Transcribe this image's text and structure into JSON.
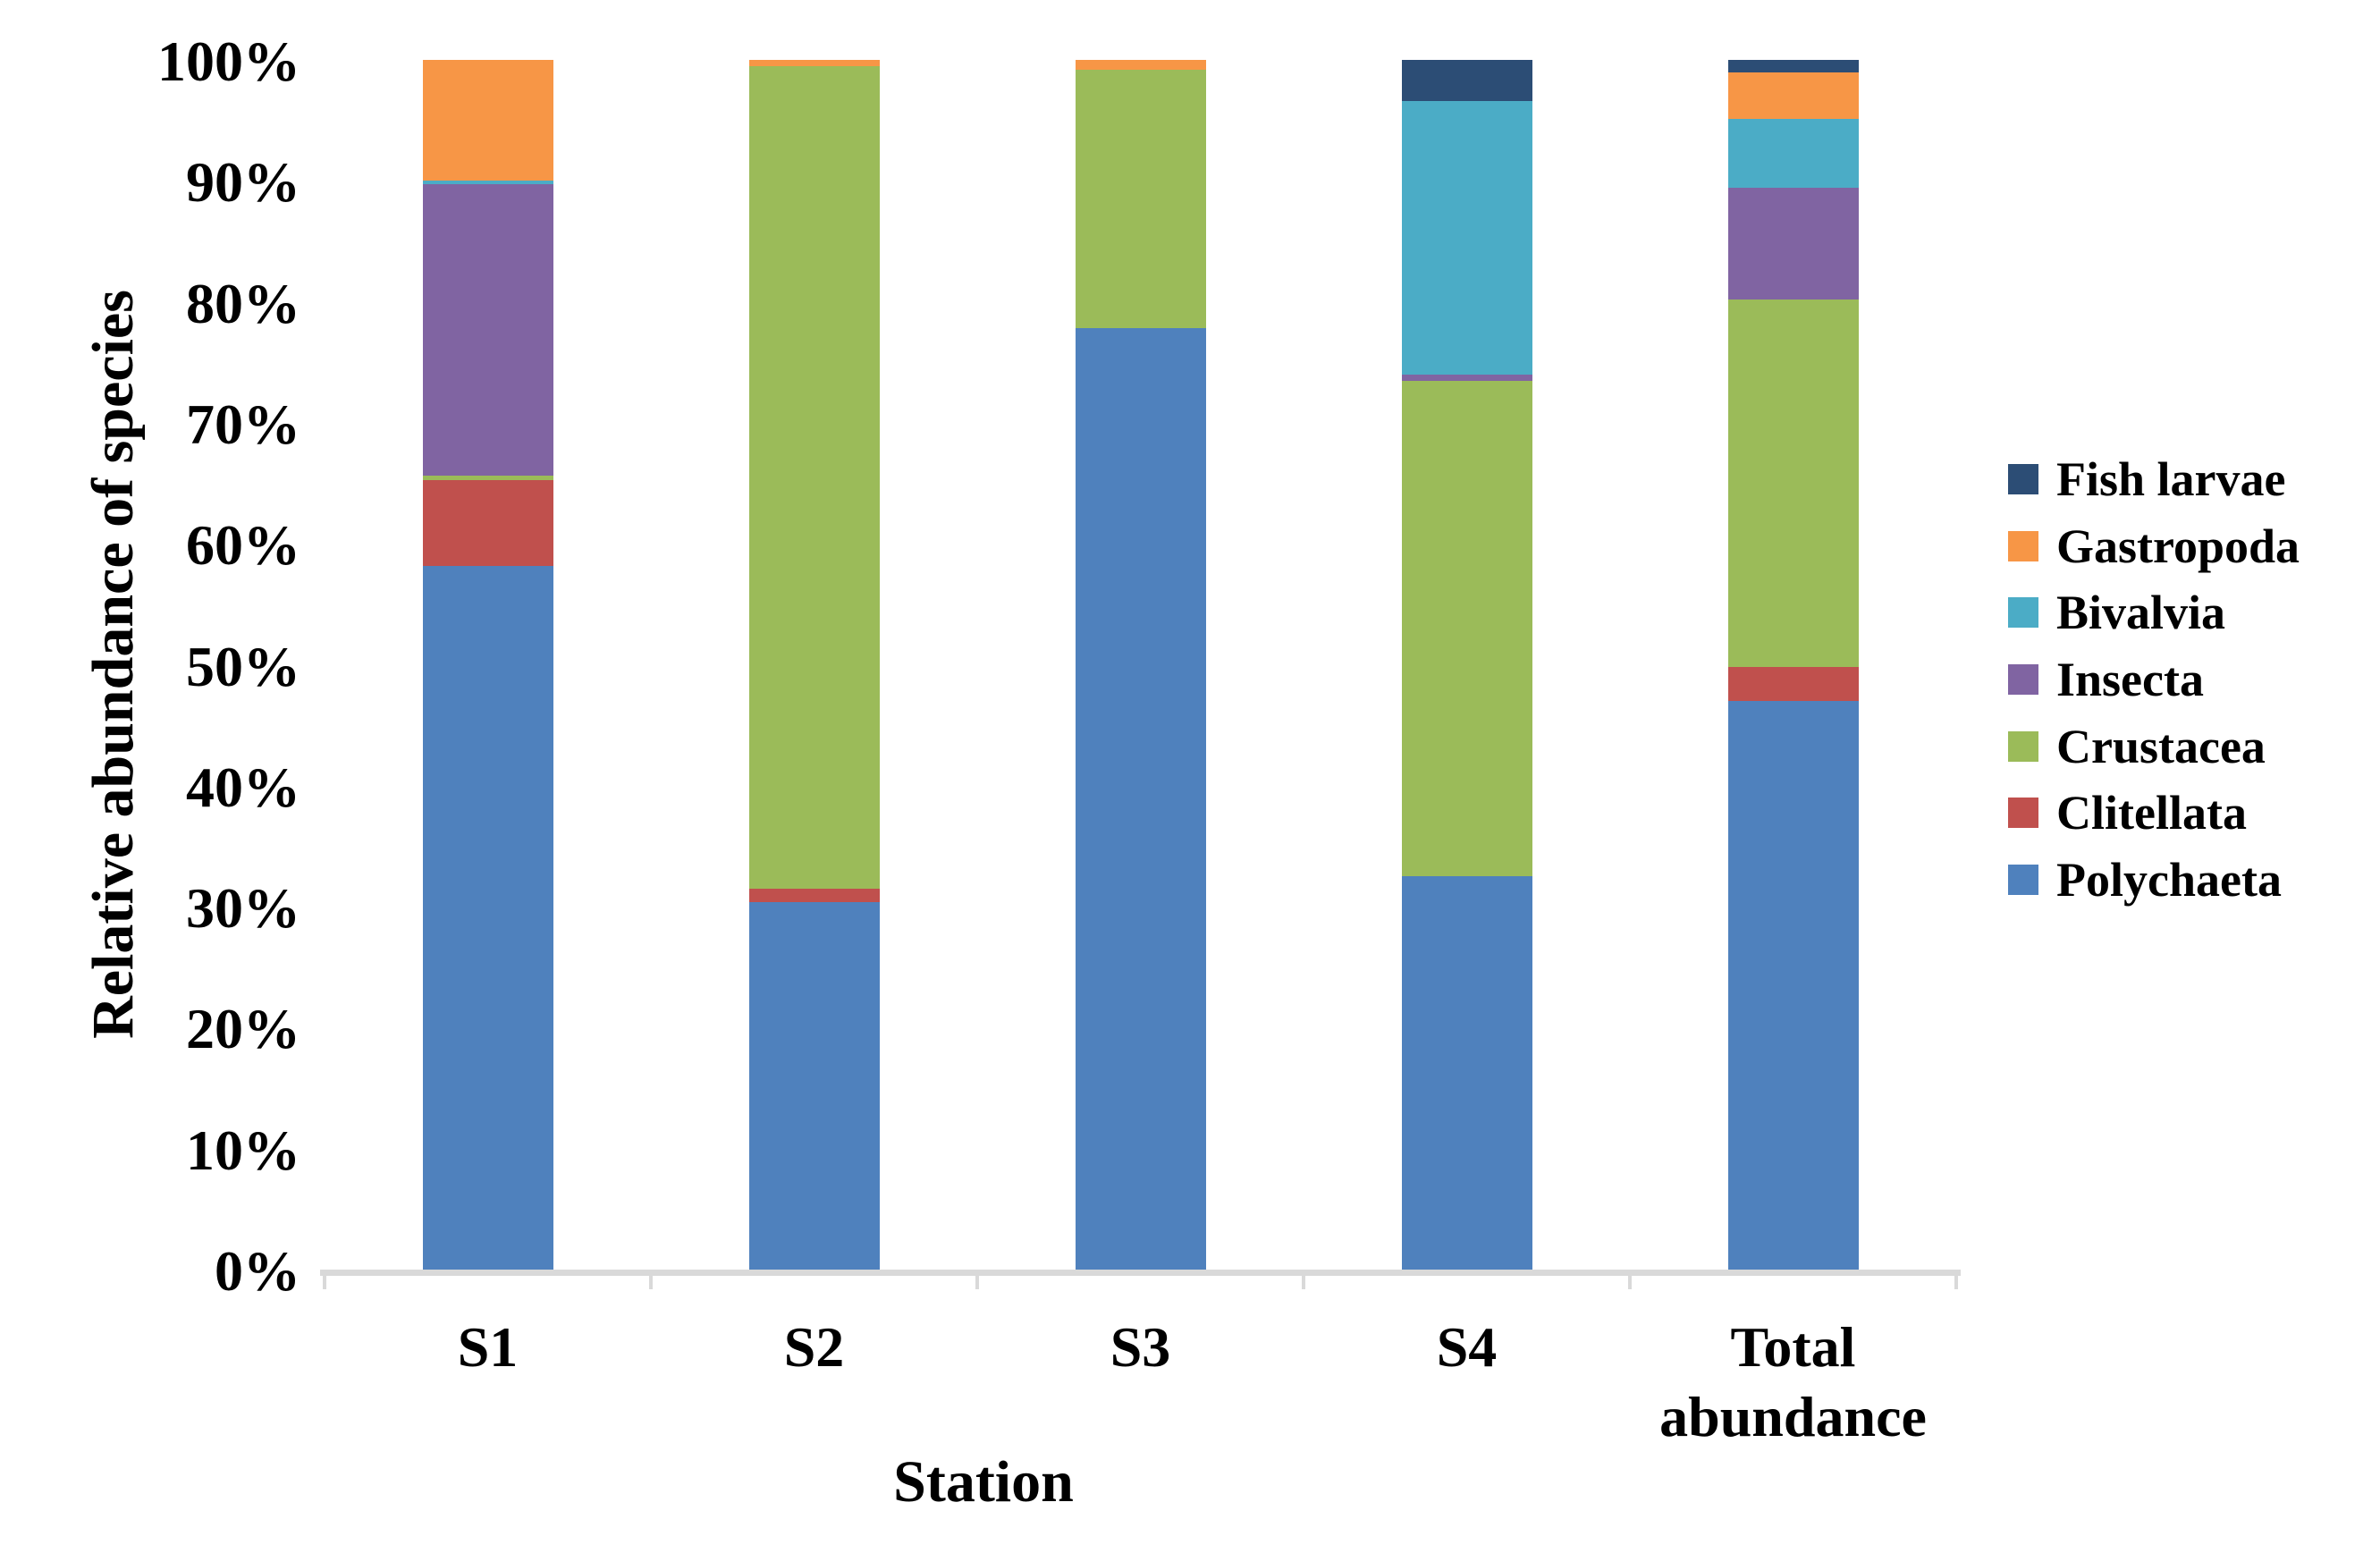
{
  "chart_data": {
    "type": "bar",
    "stacked": true,
    "percent_stacked": true,
    "title": "",
    "xlabel": "Station",
    "ylabel": "Relative abundance of species",
    "ylim": [
      0,
      100
    ],
    "grid": false,
    "legend_position": "right",
    "categories": [
      "S1",
      "S2",
      "S3",
      "S4",
      "Total abundance"
    ],
    "category_labels": [
      [
        "S1"
      ],
      [
        "S2"
      ],
      [
        "S3"
      ],
      [
        "S4"
      ],
      [
        "Total",
        "abundance"
      ]
    ],
    "y_ticks": [
      "0%",
      "10%",
      "20%",
      "30%",
      "40%",
      "50%",
      "60%",
      "70%",
      "80%",
      "90%",
      "100%"
    ],
    "series": [
      {
        "name": "Polychaeta",
        "color": "#4F81BD",
        "values": [
          58.2,
          30.4,
          77.8,
          32.5,
          47.0
        ]
      },
      {
        "name": "Clitellata",
        "color": "#C0504D",
        "values": [
          7.1,
          1.1,
          0,
          0,
          2.8
        ]
      },
      {
        "name": "Crustacea",
        "color": "#9BBB59",
        "values": [
          0.3,
          68.0,
          21.4,
          41.0,
          30.4
        ]
      },
      {
        "name": "Insecta",
        "color": "#8064A2",
        "values": [
          24.1,
          0,
          0,
          0.5,
          9.2
        ]
      },
      {
        "name": "Bivalvia",
        "color": "#4BACC6",
        "values": [
          0.3,
          0,
          0,
          22.6,
          5.7
        ]
      },
      {
        "name": "Gastropoda",
        "color": "#F79646",
        "values": [
          10.0,
          0.5,
          0.8,
          0,
          3.9
        ]
      },
      {
        "name": "Fish larvae",
        "color": "#2C4D75",
        "values": [
          0,
          0,
          0,
          3.4,
          1.0
        ]
      }
    ],
    "series_note_stack_order": "bottom to top: Polychaeta, Clitellata, Crustacea, Insecta, Bivalvia, Gastropoda, Fish larvae",
    "legend_order_top_to_bottom": [
      "Fish larvae",
      "Gastropoda",
      "Bivalvia",
      "Insecta",
      "Crustacea",
      "Clitellata",
      "Polychaeta"
    ],
    "axis_color": "#D9D9D9",
    "text_color": "#000000"
  }
}
